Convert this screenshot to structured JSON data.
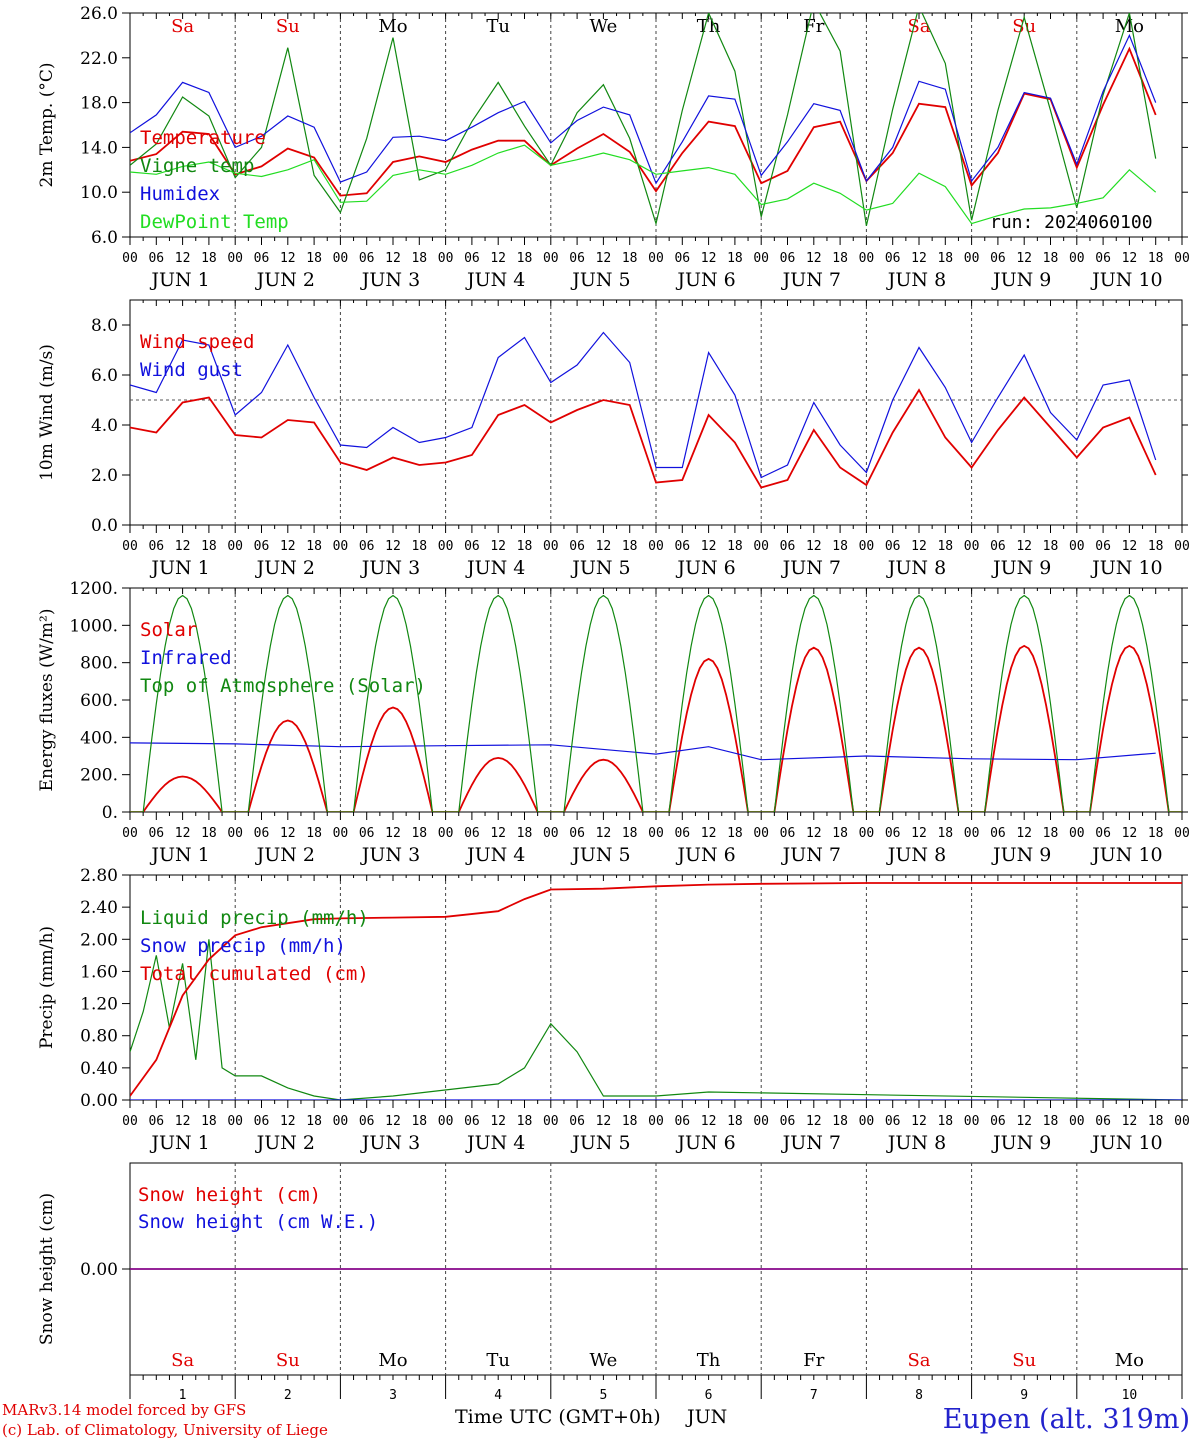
{
  "run_label": "run: 2024060100",
  "credit_line1": "MARv3.14 model forced by GFS",
  "credit_line2": "(c) Lab. of Climatology, University of Liege",
  "station": "Eupen (alt. 319m)",
  "x_axis_title": "Time UTC (GMT+0h)",
  "x_axis_month": "JUN",
  "hour_ticks": [
    "00",
    "06",
    "12",
    "18"
  ],
  "days": [
    {
      "dow": "Sa",
      "weekend": true,
      "date": "JUN  1",
      "num": "1"
    },
    {
      "dow": "Su",
      "weekend": true,
      "date": "JUN  2",
      "num": "2"
    },
    {
      "dow": "Mo",
      "weekend": false,
      "date": "JUN  3",
      "num": "3"
    },
    {
      "dow": "Tu",
      "weekend": false,
      "date": "JUN  4",
      "num": "4"
    },
    {
      "dow": "We",
      "weekend": false,
      "date": "JUN  5",
      "num": "5"
    },
    {
      "dow": "Th",
      "weekend": false,
      "date": "JUN  6",
      "num": "6"
    },
    {
      "dow": "Fr",
      "weekend": false,
      "date": "JUN  7",
      "num": "7"
    },
    {
      "dow": "Sa",
      "weekend": true,
      "date": "JUN  8",
      "num": "8"
    },
    {
      "dow": "Su",
      "weekend": true,
      "date": "JUN  9",
      "num": "9"
    },
    {
      "dow": "Mo",
      "weekend": false,
      "date": "JUN 10",
      "num": "10"
    }
  ],
  "colors": {
    "red": "#e00000",
    "green": "#118811",
    "blue": "#1111dd",
    "lightgreen": "#22dd22",
    "purple": "#880088"
  },
  "chart_data": [
    {
      "type": "line",
      "ylabel": "2m Temp. (°C)",
      "ylim": [
        6,
        26
      ],
      "yticks": [
        "6.0",
        "10.0",
        "14.0",
        "18.0",
        "22.0",
        "26.0"
      ],
      "yticks_values": [
        6,
        10,
        14,
        18,
        22,
        26
      ],
      "x_unit": "hours since JUN 1 00 UTC",
      "series": [
        {
          "name": "Temperature",
          "color": "red",
          "x": [
            0,
            6,
            12,
            18,
            24,
            30,
            36,
            42,
            48,
            54,
            60,
            66,
            72,
            78,
            84,
            90,
            96,
            102,
            108,
            114,
            120,
            126,
            132,
            138,
            144,
            150,
            156,
            162,
            168,
            174,
            180,
            186,
            192,
            198,
            204,
            210,
            216,
            222,
            228,
            234
          ],
          "y": [
            12.8,
            13.4,
            15.4,
            15.2,
            11.6,
            12.3,
            13.9,
            13.1,
            9.7,
            9.9,
            12.7,
            13.2,
            12.7,
            13.8,
            14.6,
            14.6,
            12.4,
            13.9,
            15.2,
            13.6,
            10.1,
            13.5,
            16.3,
            15.9,
            10.8,
            11.9,
            15.8,
            16.3,
            11.0,
            13.5,
            17.9,
            17.6,
            10.6,
            13.5,
            18.8,
            18.3,
            12.2,
            17.8,
            22.8,
            16.9
          ]
        },
        {
          "name": "Vigne temp",
          "color": "green",
          "x": [
            0,
            6,
            12,
            18,
            24,
            30,
            36,
            42,
            48,
            54,
            60,
            66,
            72,
            78,
            84,
            90,
            96,
            102,
            108,
            114,
            120,
            126,
            132,
            138,
            144,
            150,
            156,
            162,
            168,
            174,
            180,
            186,
            192,
            198,
            204,
            210,
            216,
            222,
            228,
            234
          ],
          "y": [
            12.4,
            14.3,
            18.5,
            16.8,
            11.3,
            14.0,
            22.9,
            11.5,
            8.2,
            14.8,
            23.8,
            11.1,
            12.0,
            16.3,
            19.8,
            15.9,
            12.4,
            17.1,
            19.6,
            14.8,
            7.2,
            17.3,
            26.0,
            20.8,
            7.8,
            16.9,
            27.0,
            22.6,
            7.0,
            17.4,
            26.6,
            21.5,
            7.5,
            17.3,
            25.6,
            17.3,
            8.6,
            18.7,
            26.0,
            13.0
          ]
        },
        {
          "name": "Humidex",
          "color": "blue",
          "x": [
            0,
            6,
            12,
            18,
            24,
            30,
            36,
            42,
            48,
            54,
            60,
            66,
            72,
            78,
            84,
            90,
            96,
            102,
            108,
            114,
            120,
            126,
            132,
            138,
            144,
            150,
            156,
            162,
            168,
            174,
            180,
            186,
            192,
            198,
            204,
            210,
            216,
            222,
            228,
            234
          ],
          "y": [
            15.3,
            16.9,
            19.8,
            18.9,
            14.0,
            15.0,
            16.8,
            15.8,
            10.9,
            11.8,
            14.9,
            15.0,
            14.6,
            15.8,
            17.1,
            18.1,
            14.4,
            16.4,
            17.6,
            16.9,
            10.8,
            14.5,
            18.6,
            18.3,
            11.5,
            14.5,
            17.9,
            17.3,
            11.0,
            14.0,
            19.9,
            19.2,
            11.0,
            14.0,
            18.9,
            18.4,
            12.5,
            19.0,
            24.0,
            18.0
          ]
        },
        {
          "name": "DewPoint Temp",
          "color": "lightgreen",
          "x": [
            0,
            6,
            12,
            18,
            24,
            30,
            36,
            42,
            48,
            54,
            60,
            66,
            72,
            78,
            84,
            90,
            96,
            102,
            108,
            114,
            120,
            126,
            132,
            138,
            144,
            150,
            156,
            162,
            168,
            174,
            180,
            186,
            192,
            198,
            204,
            210,
            216,
            222,
            228,
            234
          ],
          "y": [
            11.8,
            11.6,
            12.3,
            12.7,
            11.7,
            11.4,
            12.0,
            12.9,
            9.1,
            9.2,
            11.5,
            12.0,
            11.6,
            12.4,
            13.5,
            14.2,
            12.4,
            12.9,
            13.5,
            12.9,
            11.6,
            11.9,
            12.2,
            11.6,
            8.9,
            9.4,
            10.8,
            9.9,
            8.4,
            9.0,
            11.7,
            10.5,
            7.2,
            7.9,
            8.5,
            8.6,
            9.0,
            9.5,
            12.0,
            10.0
          ]
        }
      ]
    },
    {
      "type": "line",
      "ylabel": "10m Wind (m/s)",
      "ylim": [
        0,
        9
      ],
      "yticks": [
        "0.0",
        "2.0",
        "4.0",
        "6.0",
        "8.0"
      ],
      "yticks_values": [
        0,
        2,
        4,
        6,
        8
      ],
      "reference_line": 5,
      "series": [
        {
          "name": "Wind speed",
          "color": "red",
          "x": [
            0,
            6,
            12,
            18,
            24,
            30,
            36,
            42,
            48,
            54,
            60,
            66,
            72,
            78,
            84,
            90,
            96,
            102,
            108,
            114,
            120,
            126,
            132,
            138,
            144,
            150,
            156,
            162,
            168,
            174,
            180,
            186,
            192,
            198,
            204,
            210,
            216,
            222,
            228,
            234
          ],
          "y": [
            3.9,
            3.7,
            4.9,
            5.1,
            3.6,
            3.5,
            4.2,
            4.1,
            2.5,
            2.2,
            2.7,
            2.4,
            2.5,
            2.8,
            4.4,
            4.8,
            4.1,
            4.6,
            5.0,
            4.8,
            1.7,
            1.8,
            4.4,
            3.3,
            1.5,
            1.8,
            3.8,
            2.3,
            1.6,
            3.7,
            5.4,
            3.5,
            2.3,
            3.8,
            5.1,
            3.9,
            2.7,
            3.9,
            4.3,
            2.0
          ]
        },
        {
          "name": "Wind gust",
          "color": "blue",
          "x": [
            0,
            6,
            12,
            18,
            24,
            30,
            36,
            42,
            48,
            54,
            60,
            66,
            72,
            78,
            84,
            90,
            96,
            102,
            108,
            114,
            120,
            126,
            132,
            138,
            144,
            150,
            156,
            162,
            168,
            174,
            180,
            186,
            192,
            198,
            204,
            210,
            216,
            222,
            228,
            234
          ],
          "y": [
            5.6,
            5.3,
            7.4,
            7.2,
            4.4,
            5.3,
            7.2,
            5.1,
            3.2,
            3.1,
            3.9,
            3.3,
            3.5,
            3.9,
            6.7,
            7.5,
            5.7,
            6.4,
            7.7,
            6.5,
            2.3,
            2.3,
            6.9,
            5.2,
            1.9,
            2.4,
            4.9,
            3.2,
            2.1,
            5.0,
            7.1,
            5.5,
            3.3,
            5.1,
            6.8,
            4.5,
            3.4,
            5.6,
            5.8,
            2.6
          ]
        }
      ]
    },
    {
      "type": "line",
      "ylabel": "Energy fluxes (W/m²)",
      "ylim": [
        0,
        1200
      ],
      "yticks": [
        "0.",
        "200.",
        "400.",
        "600.",
        "800.",
        "1000.",
        "1200."
      ],
      "yticks_values": [
        0,
        200,
        400,
        600,
        800,
        1000,
        1200
      ],
      "series": [
        {
          "name": "Solar",
          "color": "red",
          "daily_peak": [
            190,
            490,
            560,
            290,
            280,
            820,
            880,
            880,
            890,
            890
          ],
          "shape": "diurnal"
        },
        {
          "name": "Infrared",
          "color": "blue",
          "x": [
            0,
            24,
            48,
            72,
            96,
            120,
            132,
            144,
            168,
            192,
            216,
            234
          ],
          "y": [
            370,
            365,
            350,
            355,
            360,
            310,
            350,
            280,
            300,
            285,
            280,
            315
          ]
        },
        {
          "name": "Top of Atmosphere (Solar)",
          "color": "green",
          "daily_peak": [
            1160,
            1160,
            1160,
            1160,
            1160,
            1160,
            1160,
            1160,
            1160,
            1160
          ],
          "shape": "diurnal"
        }
      ]
    },
    {
      "type": "line",
      "ylabel": "Precip (mm/h)",
      "ylim": [
        0,
        2.8
      ],
      "yticks": [
        "0.00",
        "0.40",
        "0.80",
        "1.20",
        "1.60",
        "2.00",
        "2.40",
        "2.80"
      ],
      "yticks_values": [
        0,
        0.4,
        0.8,
        1.2,
        1.6,
        2.0,
        2.4,
        2.8
      ],
      "series": [
        {
          "name": "Liquid precip (mm/h)",
          "color": "green",
          "x": [
            0,
            3,
            6,
            9,
            12,
            15,
            18,
            21,
            24,
            30,
            36,
            42,
            48,
            60,
            84,
            90,
            96,
            102,
            108,
            120,
            132,
            240
          ],
          "y": [
            0.6,
            1.1,
            1.8,
            0.9,
            1.7,
            0.5,
            2.0,
            0.4,
            0.3,
            0.3,
            0.15,
            0.05,
            0.0,
            0.05,
            0.2,
            0.4,
            0.95,
            0.6,
            0.05,
            0.05,
            0.1,
            0.0
          ]
        },
        {
          "name": "Snow precip (mm/h)",
          "color": "blue",
          "x": [
            0,
            240
          ],
          "y": [
            0,
            0
          ]
        },
        {
          "name": "Total cumulated (cm)",
          "color": "red",
          "x": [
            0,
            6,
            12,
            18,
            24,
            30,
            36,
            42,
            48,
            60,
            72,
            84,
            90,
            96,
            108,
            120,
            132,
            144,
            168,
            240
          ],
          "y": [
            0.05,
            0.5,
            1.3,
            1.75,
            2.05,
            2.15,
            2.2,
            2.25,
            2.26,
            2.27,
            2.28,
            2.35,
            2.5,
            2.62,
            2.63,
            2.66,
            2.68,
            2.69,
            2.7,
            2.7
          ]
        }
      ]
    },
    {
      "type": "line",
      "ylabel": "Snow height (cm)",
      "ylim": [
        -1,
        1
      ],
      "yticks": [
        "0.00"
      ],
      "yticks_values": [
        0
      ],
      "series": [
        {
          "name": "Snow height (cm)",
          "color": "red",
          "x": [
            0,
            240
          ],
          "y": [
            0,
            0
          ]
        },
        {
          "name": "Snow height (cm W.E.)",
          "color": "blue",
          "x": [
            0,
            240
          ],
          "y": [
            0,
            0
          ]
        }
      ]
    }
  ]
}
